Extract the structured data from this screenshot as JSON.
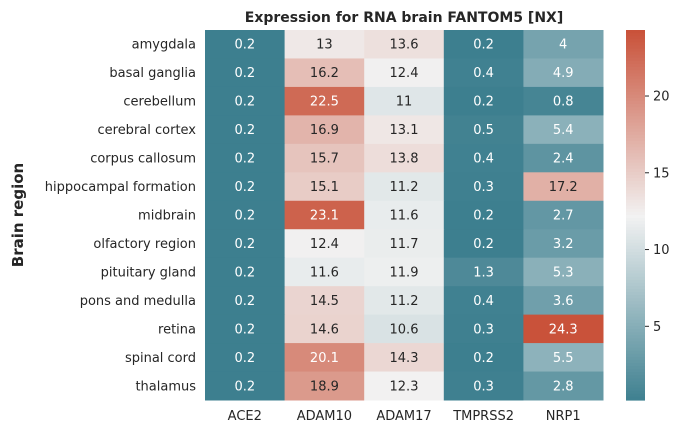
{
  "chart_data": {
    "type": "heatmap",
    "title": "Expression for RNA brain FANTOM5 [NX]",
    "xlabel": "",
    "ylabel": "Brain region",
    "x": [
      "ACE2",
      "ADAM10",
      "ADAM17",
      "TMPRSS2",
      "NRP1"
    ],
    "y": [
      "amygdala",
      "basal ganglia",
      "cerebellum",
      "cerebral cortex",
      "corpus callosum",
      "hippocampal formation",
      "midbrain",
      "olfactory region",
      "pituitary gland",
      "pons and medulla",
      "retina",
      "spinal cord",
      "thalamus"
    ],
    "values": [
      [
        0.2,
        13,
        13.6,
        0.2,
        4
      ],
      [
        0.2,
        16.2,
        12.4,
        0.4,
        4.9
      ],
      [
        0.2,
        22.5,
        11,
        0.2,
        0.8
      ],
      [
        0.2,
        16.9,
        13.1,
        0.5,
        5.4
      ],
      [
        0.2,
        15.7,
        13.8,
        0.4,
        2.4
      ],
      [
        0.2,
        15.1,
        11.2,
        0.3,
        17.2
      ],
      [
        0.2,
        23.1,
        11.6,
        0.2,
        2.7
      ],
      [
        0.2,
        12.4,
        11.7,
        0.2,
        3.2
      ],
      [
        0.2,
        11.6,
        11.9,
        1.3,
        5.3
      ],
      [
        0.2,
        14.5,
        11.2,
        0.4,
        3.6
      ],
      [
        0.2,
        14.6,
        10.6,
        0.3,
        24.3
      ],
      [
        0.2,
        20.1,
        14.3,
        0.2,
        5.5
      ],
      [
        0.2,
        18.9,
        12.3,
        0.3,
        2.8
      ]
    ],
    "colorbar": {
      "range": [
        0.2,
        24.3
      ],
      "ticks": [
        5,
        10,
        15,
        20
      ],
      "colors": [
        "#3d7f8f",
        "#f2f2f2",
        "#c9523a"
      ]
    },
    "grid": false
  }
}
